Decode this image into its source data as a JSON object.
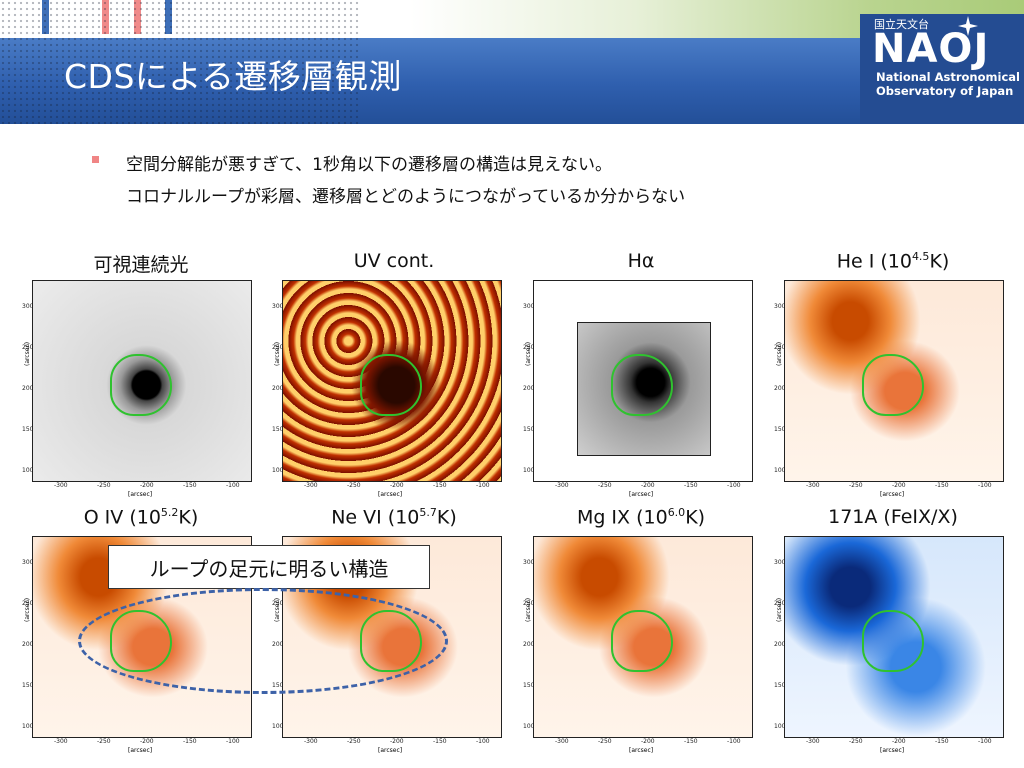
{
  "header": {
    "title": "CDSによる遷移層観測",
    "logo_jp": "国立天文台",
    "logo_abbrev": "NAOJ",
    "logo_line1": "National Astronomical",
    "logo_line2": "Observatory of Japan"
  },
  "bullets": [
    "空間分解能が悪すぎて、1秒角以下の遷移層の構造は見えない。",
    "コロナルループが彩層、遷移層とどのようにつながっているか分からない"
  ],
  "panels": [
    {
      "label": "可視連続光",
      "label_sup": "",
      "label_post": "",
      "colormap": "gray-white"
    },
    {
      "label": "UV cont.",
      "label_sup": "",
      "label_post": "",
      "colormap": "red-orange"
    },
    {
      "label": "Hα",
      "label_sup": "",
      "label_post": "",
      "colormap": "white-gray-inset"
    },
    {
      "label": "He I (10",
      "label_sup": "4.5",
      "label_post": "K)",
      "colormap": "orange"
    },
    {
      "label": "O IV (10",
      "label_sup": "5.2",
      "label_post": "K)",
      "colormap": "orange"
    },
    {
      "label": "Ne VI (10",
      "label_sup": "5.7",
      "label_post": "K)",
      "colormap": "orange"
    },
    {
      "label": "Mg IX (10",
      "label_sup": "6.0",
      "label_post": "K)",
      "colormap": "orange"
    },
    {
      "label": "171A (FeIX/X)",
      "label_sup": "",
      "label_post": "",
      "colormap": "blue"
    }
  ],
  "axes": {
    "y_ticks": [
      "300",
      "250",
      "200",
      "150",
      "100"
    ],
    "x_ticks": [
      "-300",
      "-250",
      "-200",
      "-150",
      "-100"
    ],
    "ylabel": "(arcsec)",
    "xlabel": "[arcsec]"
  },
  "callout": "ループの足元に明るい構造",
  "colors": {
    "band_blue": "#2f5fae",
    "bullet_marker": "#f08585",
    "contour_green": "#2fc22f",
    "ellipse_dash": "#3d62a8"
  }
}
